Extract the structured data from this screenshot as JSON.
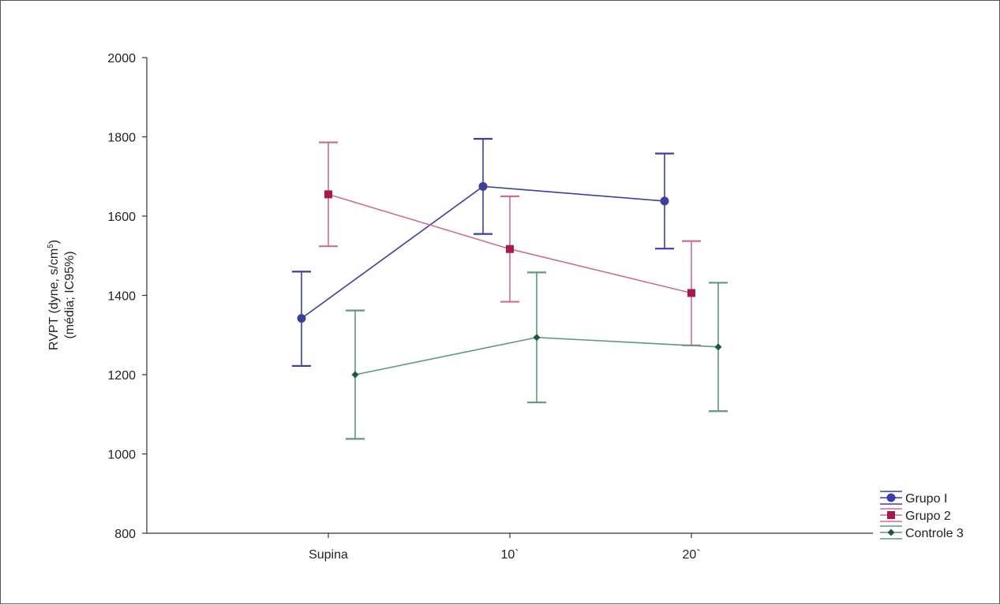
{
  "chart_data": {
    "type": "line",
    "categories": [
      "Supina",
      "10`",
      "20`"
    ],
    "ylabel_line1": "RVPT (dyne, s/cm",
    "ylabel_sup": "5",
    "ylabel_line1_end": ")",
    "ylabel_line2": "(média; IC95%)",
    "ylim": [
      800,
      2000
    ],
    "yticks": [
      800,
      1000,
      1200,
      1400,
      1600,
      1800,
      2000
    ],
    "legend_position": "bottom-right",
    "series": [
      {
        "name": "Grupo I",
        "color": "#3b3f9e",
        "marker": "circle",
        "values": [
          1342,
          1675,
          1638
        ],
        "ci_low": [
          1222,
          1555,
          1518
        ],
        "ci_high": [
          1460,
          1795,
          1758
        ]
      },
      {
        "name": "Grupo 2",
        "color": "#a6184f",
        "line_color": "#cc6f8f",
        "marker": "square",
        "values": [
          1655,
          1517,
          1406
        ],
        "ci_low": [
          1524,
          1384,
          1274
        ],
        "ci_high": [
          1786,
          1650,
          1537
        ]
      },
      {
        "name": "Controle 3",
        "color": "#1d5a3c",
        "line_color": "#5e9a78",
        "marker": "diamond",
        "values": [
          1200,
          1294,
          1270
        ],
        "ci_low": [
          1038,
          1130,
          1108
        ],
        "ci_high": [
          1362,
          1458,
          1432
        ]
      }
    ]
  }
}
